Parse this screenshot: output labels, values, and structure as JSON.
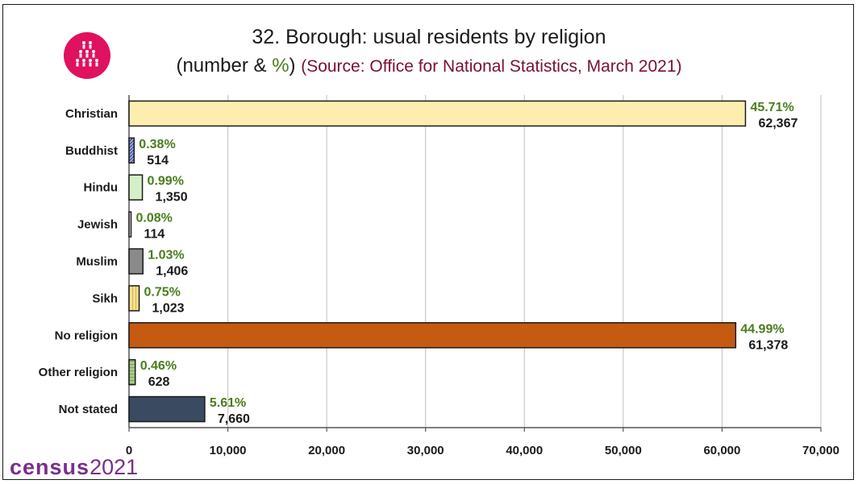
{
  "header": {
    "title_line1": "32. Borough: usual residents by religion",
    "title_line2_prefix": "(number & ",
    "title_line2_pct": "%",
    "title_line2_suffix": ")",
    "source": "(Source: Office for National Statistics, March 2021)",
    "logo_icon": "people-group-icon",
    "logo_color": "#e0115f"
  },
  "footer": {
    "brand_word": "census",
    "brand_year": "2021",
    "brand_color": "#7b2d8e"
  },
  "chart_data": {
    "type": "bar",
    "orientation": "horizontal",
    "title": "32. Borough: usual residents by religion",
    "categories": [
      "Christian",
      "Buddhist",
      "Hindu",
      "Jewish",
      "Muslim",
      "Sikh",
      "No religion",
      "Other religion",
      "Not stated"
    ],
    "values": [
      62367,
      514,
      1350,
      114,
      1406,
      1023,
      61378,
      628,
      7660
    ],
    "value_labels": [
      "62,367",
      "514",
      "1,350",
      "114",
      "1,406",
      "1,023",
      "61,378",
      "628",
      "7,660"
    ],
    "percent_labels": [
      "45.71%",
      "0.38%",
      "0.99%",
      "0.08%",
      "1.03%",
      "0.75%",
      "44.99%",
      "0.46%",
      "5.61%"
    ],
    "bar_colors": [
      "#fdeeb0",
      "#9fa8e0",
      "#d5efc8",
      "#f5f5f5",
      "#8a8a8a",
      "#f8e08a",
      "#c55a11",
      "#a9c98c",
      "#3a4a60"
    ],
    "percent_color": "#4a7d1e",
    "xlim": [
      0,
      70000
    ],
    "xticks": [
      "0",
      "10,000",
      "20,000",
      "30,000",
      "40,000",
      "50,000",
      "60,000",
      "70,000"
    ],
    "xlabel": "",
    "ylabel": "",
    "grid": true,
    "legend": "none"
  }
}
